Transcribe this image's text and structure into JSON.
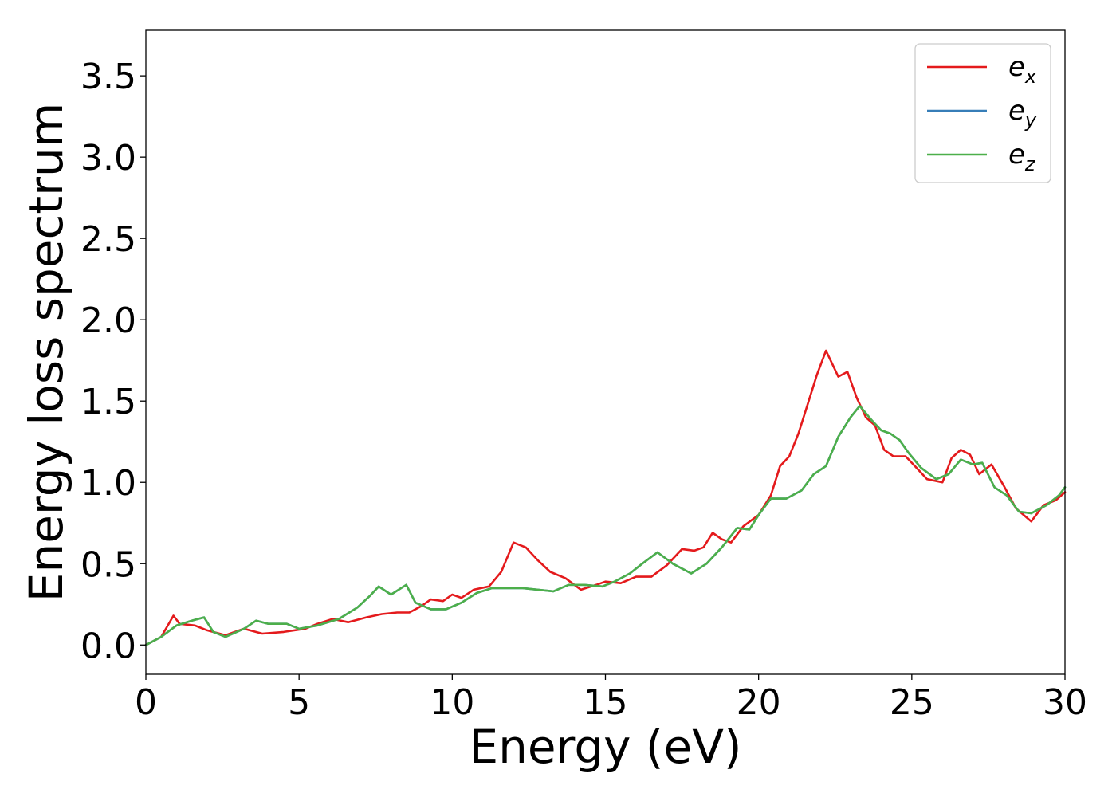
{
  "chart_data": {
    "type": "line",
    "title": "",
    "xlabel": "Energy (eV)",
    "ylabel": "Energy loss spectrum",
    "xlim": [
      0,
      30
    ],
    "ylim": [
      -0.18,
      3.78
    ],
    "xticks": [
      0,
      5,
      10,
      15,
      20,
      25,
      30
    ],
    "xtick_labels": [
      "0",
      "5",
      "10",
      "15",
      "20",
      "25",
      "30"
    ],
    "yticks": [
      0.0,
      0.5,
      1.0,
      1.5,
      2.0,
      2.5,
      3.0,
      3.5
    ],
    "ytick_labels": [
      "0.0",
      "0.5",
      "1.0",
      "1.5",
      "2.0",
      "2.5",
      "3.0",
      "3.5"
    ],
    "grid": false,
    "legend": "top-right",
    "series": [
      {
        "name": "e",
        "subscript": "x",
        "color": "#e41a1c",
        "points": [
          [
            0,
            0.0
          ],
          [
            0.5,
            0.05
          ],
          [
            0.9,
            0.18
          ],
          [
            1.1,
            0.13
          ],
          [
            1.6,
            0.12
          ],
          [
            2.0,
            0.09
          ],
          [
            2.6,
            0.06
          ],
          [
            3.2,
            0.1
          ],
          [
            3.8,
            0.07
          ],
          [
            4.5,
            0.08
          ],
          [
            5.2,
            0.1
          ],
          [
            5.6,
            0.13
          ],
          [
            6.1,
            0.16
          ],
          [
            6.6,
            0.14
          ],
          [
            7.2,
            0.17
          ],
          [
            7.7,
            0.19
          ],
          [
            8.2,
            0.2
          ],
          [
            8.6,
            0.2
          ],
          [
            9.0,
            0.24
          ],
          [
            9.3,
            0.28
          ],
          [
            9.7,
            0.27
          ],
          [
            10.0,
            0.31
          ],
          [
            10.3,
            0.29
          ],
          [
            10.7,
            0.34
          ],
          [
            11.2,
            0.36
          ],
          [
            11.6,
            0.45
          ],
          [
            12.0,
            0.63
          ],
          [
            12.4,
            0.6
          ],
          [
            12.8,
            0.52
          ],
          [
            13.2,
            0.45
          ],
          [
            13.7,
            0.41
          ],
          [
            14.2,
            0.34
          ],
          [
            14.7,
            0.37
          ],
          [
            15.0,
            0.39
          ],
          [
            15.5,
            0.38
          ],
          [
            16.0,
            0.42
          ],
          [
            16.5,
            0.42
          ],
          [
            17.0,
            0.49
          ],
          [
            17.5,
            0.59
          ],
          [
            17.9,
            0.58
          ],
          [
            18.2,
            0.6
          ],
          [
            18.5,
            0.69
          ],
          [
            18.8,
            0.65
          ],
          [
            19.1,
            0.63
          ],
          [
            19.5,
            0.73
          ],
          [
            20.0,
            0.8
          ],
          [
            20.4,
            0.92
          ],
          [
            20.7,
            1.1
          ],
          [
            21.0,
            1.16
          ],
          [
            21.3,
            1.3
          ],
          [
            21.6,
            1.48
          ],
          [
            21.9,
            1.66
          ],
          [
            22.2,
            1.81
          ],
          [
            22.6,
            1.65
          ],
          [
            22.9,
            1.68
          ],
          [
            23.2,
            1.52
          ],
          [
            23.5,
            1.4
          ],
          [
            23.8,
            1.35
          ],
          [
            24.1,
            1.2
          ],
          [
            24.4,
            1.16
          ],
          [
            24.8,
            1.16
          ],
          [
            25.1,
            1.1
          ],
          [
            25.5,
            1.02
          ],
          [
            26.0,
            1.0
          ],
          [
            26.3,
            1.15
          ],
          [
            26.6,
            1.2
          ],
          [
            26.9,
            1.17
          ],
          [
            27.2,
            1.05
          ],
          [
            27.6,
            1.11
          ],
          [
            28.0,
            0.98
          ],
          [
            28.4,
            0.84
          ],
          [
            28.9,
            0.76
          ],
          [
            29.3,
            0.86
          ],
          [
            29.7,
            0.89
          ],
          [
            30.0,
            0.94
          ]
        ]
      },
      {
        "name": "e",
        "subscript": "y",
        "color": "#377eb8",
        "points": [
          [
            0,
            0.0
          ],
          [
            0.5,
            0.05
          ],
          [
            1.0,
            0.12
          ],
          [
            1.5,
            0.15
          ],
          [
            1.9,
            0.17
          ],
          [
            2.2,
            0.08
          ],
          [
            2.6,
            0.05
          ],
          [
            3.2,
            0.1
          ],
          [
            3.6,
            0.15
          ],
          [
            4.0,
            0.13
          ],
          [
            4.6,
            0.13
          ],
          [
            5.0,
            0.1
          ],
          [
            5.6,
            0.12
          ],
          [
            6.3,
            0.16
          ],
          [
            6.9,
            0.23
          ],
          [
            7.3,
            0.3
          ],
          [
            7.6,
            0.36
          ],
          [
            8.0,
            0.31
          ],
          [
            8.5,
            0.37
          ],
          [
            8.8,
            0.26
          ],
          [
            9.3,
            0.22
          ],
          [
            9.8,
            0.22
          ],
          [
            10.3,
            0.26
          ],
          [
            10.8,
            0.32
          ],
          [
            11.3,
            0.35
          ],
          [
            11.8,
            0.35
          ],
          [
            12.3,
            0.35
          ],
          [
            12.8,
            0.34
          ],
          [
            13.3,
            0.33
          ],
          [
            13.8,
            0.37
          ],
          [
            14.3,
            0.37
          ],
          [
            14.9,
            0.36
          ],
          [
            15.3,
            0.39
          ],
          [
            15.8,
            0.44
          ],
          [
            16.2,
            0.5
          ],
          [
            16.7,
            0.57
          ],
          [
            17.2,
            0.5
          ],
          [
            17.8,
            0.44
          ],
          [
            18.3,
            0.5
          ],
          [
            18.8,
            0.6
          ],
          [
            19.3,
            0.72
          ],
          [
            19.7,
            0.71
          ],
          [
            20.0,
            0.8
          ],
          [
            20.4,
            0.9
          ],
          [
            20.9,
            0.9
          ],
          [
            21.4,
            0.95
          ],
          [
            21.8,
            1.05
          ],
          [
            22.2,
            1.1
          ],
          [
            22.6,
            1.28
          ],
          [
            23.0,
            1.4
          ],
          [
            23.3,
            1.47
          ],
          [
            23.7,
            1.38
          ],
          [
            24.0,
            1.32
          ],
          [
            24.3,
            1.3
          ],
          [
            24.6,
            1.26
          ],
          [
            24.9,
            1.18
          ],
          [
            25.3,
            1.09
          ],
          [
            25.8,
            1.02
          ],
          [
            26.2,
            1.05
          ],
          [
            26.6,
            1.14
          ],
          [
            27.0,
            1.11
          ],
          [
            27.3,
            1.12
          ],
          [
            27.7,
            0.97
          ],
          [
            28.1,
            0.92
          ],
          [
            28.5,
            0.82
          ],
          [
            28.9,
            0.81
          ],
          [
            29.4,
            0.86
          ],
          [
            29.8,
            0.92
          ],
          [
            30.0,
            0.97
          ]
        ]
      },
      {
        "name": "e",
        "subscript": "z",
        "color": "#4daf4a",
        "points": [
          [
            0,
            0.0
          ],
          [
            0.5,
            0.05
          ],
          [
            1.0,
            0.12
          ],
          [
            1.5,
            0.15
          ],
          [
            1.9,
            0.17
          ],
          [
            2.2,
            0.08
          ],
          [
            2.6,
            0.05
          ],
          [
            3.2,
            0.1
          ],
          [
            3.6,
            0.15
          ],
          [
            4.0,
            0.13
          ],
          [
            4.6,
            0.13
          ],
          [
            5.0,
            0.1
          ],
          [
            5.6,
            0.12
          ],
          [
            6.3,
            0.16
          ],
          [
            6.9,
            0.23
          ],
          [
            7.3,
            0.3
          ],
          [
            7.6,
            0.36
          ],
          [
            8.0,
            0.31
          ],
          [
            8.5,
            0.37
          ],
          [
            8.8,
            0.26
          ],
          [
            9.3,
            0.22
          ],
          [
            9.8,
            0.22
          ],
          [
            10.3,
            0.26
          ],
          [
            10.8,
            0.32
          ],
          [
            11.3,
            0.35
          ],
          [
            11.8,
            0.35
          ],
          [
            12.3,
            0.35
          ],
          [
            12.8,
            0.34
          ],
          [
            13.3,
            0.33
          ],
          [
            13.8,
            0.37
          ],
          [
            14.3,
            0.37
          ],
          [
            14.9,
            0.36
          ],
          [
            15.3,
            0.39
          ],
          [
            15.8,
            0.44
          ],
          [
            16.2,
            0.5
          ],
          [
            16.7,
            0.57
          ],
          [
            17.2,
            0.5
          ],
          [
            17.8,
            0.44
          ],
          [
            18.3,
            0.5
          ],
          [
            18.8,
            0.6
          ],
          [
            19.3,
            0.72
          ],
          [
            19.7,
            0.71
          ],
          [
            20.0,
            0.8
          ],
          [
            20.4,
            0.9
          ],
          [
            20.9,
            0.9
          ],
          [
            21.4,
            0.95
          ],
          [
            21.8,
            1.05
          ],
          [
            22.2,
            1.1
          ],
          [
            22.6,
            1.28
          ],
          [
            23.0,
            1.4
          ],
          [
            23.3,
            1.47
          ],
          [
            23.7,
            1.38
          ],
          [
            24.0,
            1.32
          ],
          [
            24.3,
            1.3
          ],
          [
            24.6,
            1.26
          ],
          [
            24.9,
            1.18
          ],
          [
            25.3,
            1.09
          ],
          [
            25.8,
            1.02
          ],
          [
            26.2,
            1.05
          ],
          [
            26.6,
            1.14
          ],
          [
            27.0,
            1.11
          ],
          [
            27.3,
            1.12
          ],
          [
            27.7,
            0.97
          ],
          [
            28.1,
            0.92
          ],
          [
            28.5,
            0.82
          ],
          [
            28.9,
            0.81
          ],
          [
            29.4,
            0.86
          ],
          [
            29.8,
            0.92
          ],
          [
            30.0,
            0.97
          ]
        ]
      }
    ]
  }
}
